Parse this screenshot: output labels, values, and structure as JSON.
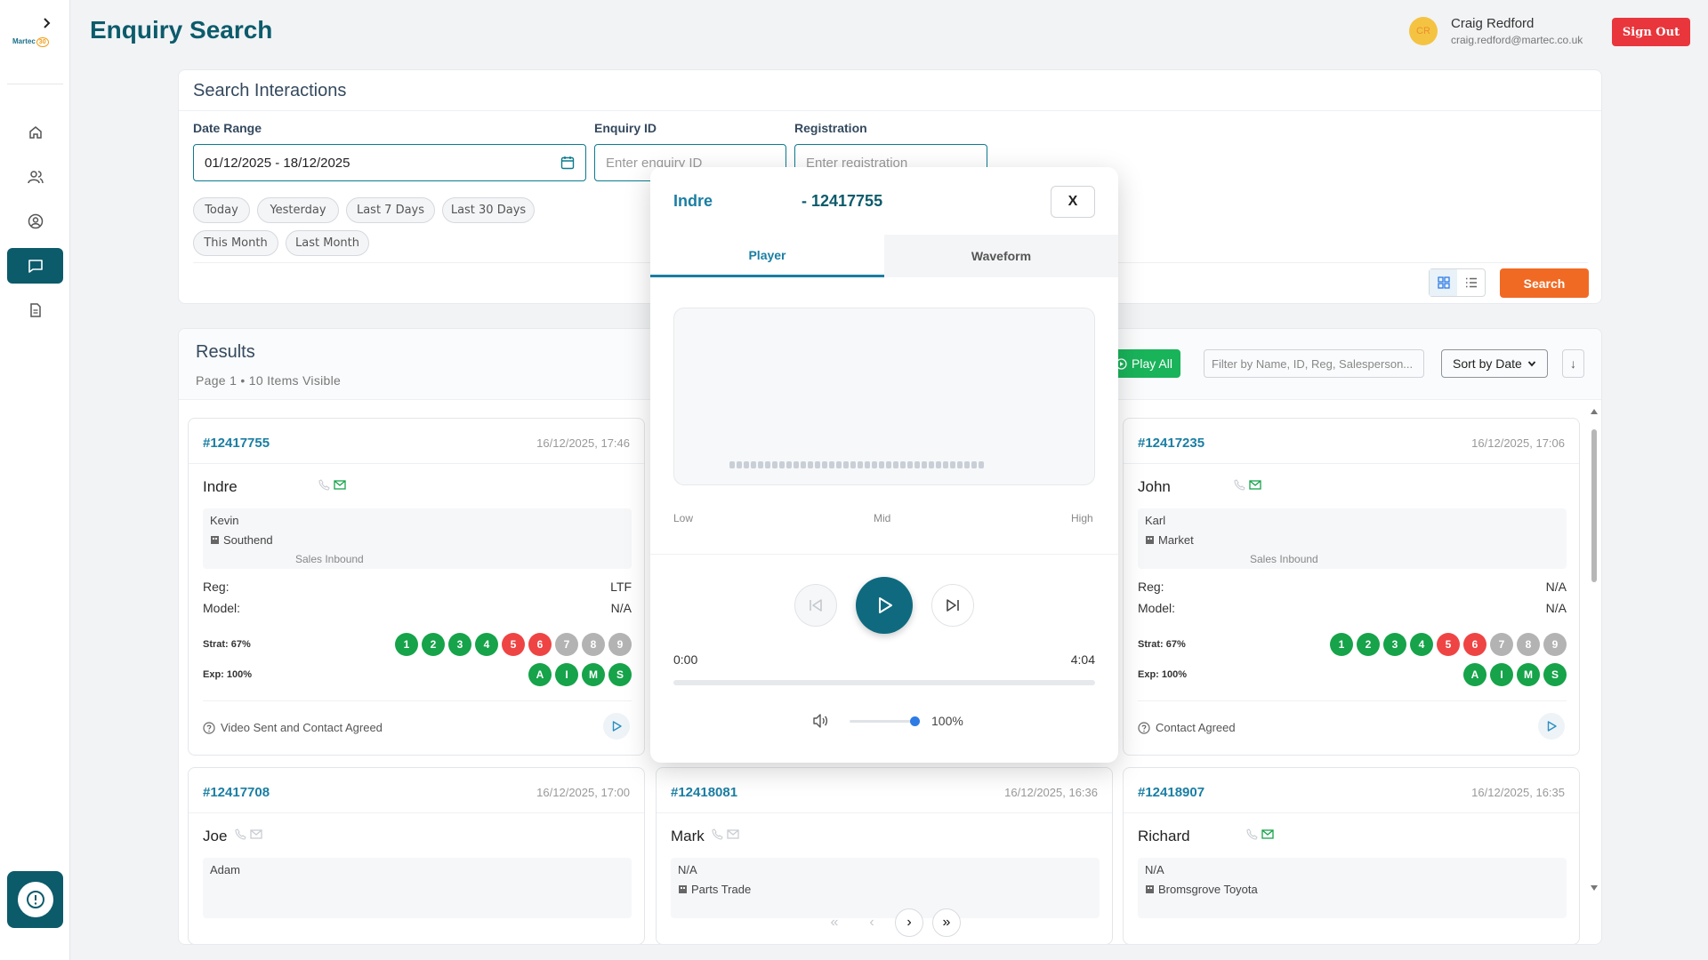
{
  "header": {
    "title": "Enquiry Search",
    "user_initials": "CR",
    "user_name": "Craig Redford",
    "user_email": "craig.redford@martec.co.uk",
    "sign_out": "Sign Out"
  },
  "sidebar": {
    "logo_text": "Martec",
    "logo_badge": "30",
    "items": [
      {
        "icon": "home-icon"
      },
      {
        "icon": "users-icon"
      },
      {
        "icon": "user-circle-icon"
      },
      {
        "icon": "chat-icon",
        "active": true
      },
      {
        "icon": "document-icon"
      }
    ]
  },
  "search": {
    "title": "Search Interactions",
    "date_range_label": "Date Range",
    "date_range_value": "01/12/2025 - 18/12/2025",
    "enquiry_id_label": "Enquiry ID",
    "enquiry_id_placeholder": "Enter enquiry ID",
    "registration_label": "Registration",
    "registration_placeholder": "Enter registration",
    "chips": [
      "Today",
      "Yesterday",
      "Last 7 Days",
      "Last 30 Days",
      "This Month",
      "Last Month"
    ],
    "search_button": "Search"
  },
  "results": {
    "title": "Results",
    "subtitle": "Page 1 • 10 Items Visible",
    "play_all": "Play All",
    "filter_placeholder": "Filter by Name, ID, Reg, Salesperson...",
    "sort_value": "Sort by Date",
    "sort_dir": "↓",
    "cards": [
      {
        "id": "#12417755",
        "date": "16/12/2025, 17:46",
        "name": "Indre",
        "salesperson": "Kevin",
        "site": "Southend",
        "dept": "Sales Inbound",
        "reg_label": "Reg:",
        "reg": "LTF",
        "model_label": "Model:",
        "model": "N/A",
        "strat_label": "Strat: 67%",
        "exp_label": "Exp: 100%",
        "outcome": "Video Sent and Contact Agreed"
      },
      {
        "id": "#12417235",
        "date": "16/12/2025, 17:06",
        "name": "John",
        "salesperson": "Karl",
        "site": "Market",
        "dept": "Sales Inbound",
        "reg_label": "Reg:",
        "reg": "N/A",
        "model_label": "Model:",
        "model": "N/A",
        "strat_label": "Strat: 67%",
        "exp_label": "Exp: 100%",
        "outcome": "Contact Agreed"
      },
      {
        "id": "#12417708",
        "date": "16/12/2025, 17:00",
        "name": "Joe",
        "salesperson": "Adam"
      },
      {
        "id": "#12418081",
        "date": "16/12/2025, 16:36",
        "name": "Mark",
        "salesperson": "N/A",
        "site": "Parts Trade"
      },
      {
        "id": "#12418907",
        "date": "16/12/2025, 16:35",
        "name": "Richard",
        "salesperson": "N/A",
        "site": "Bromsgrove Toyota"
      }
    ],
    "strat_dots": [
      {
        "label": "1",
        "status": "pass"
      },
      {
        "label": "2",
        "status": "pass"
      },
      {
        "label": "3",
        "status": "pass"
      },
      {
        "label": "4",
        "status": "pass"
      },
      {
        "label": "5",
        "status": "fail"
      },
      {
        "label": "6",
        "status": "fail"
      },
      {
        "label": "7",
        "status": "na"
      },
      {
        "label": "8",
        "status": "na"
      },
      {
        "label": "9",
        "status": "na"
      }
    ],
    "exp_dots": [
      "A",
      "I",
      "M",
      "S"
    ]
  },
  "pager": {
    "first": "«",
    "prev": "‹",
    "next": "›",
    "last": "»"
  },
  "modal": {
    "name": "Indre",
    "enquiry": "- 12417755",
    "close": "X",
    "tab_player": "Player",
    "tab_waveform": "Waveform",
    "freq_low": "Low",
    "freq_mid": "Mid",
    "freq_high": "High",
    "time_current": "0:00",
    "time_total": "4:04",
    "progress": 0,
    "volume_pct": "100%",
    "volume": 1.0
  },
  "colors": {
    "brand": "#0c5b6b",
    "accent": "#1a7ea3",
    "search": "#f06a24",
    "signout": "#e8363c",
    "play_all": "#19b35a"
  }
}
